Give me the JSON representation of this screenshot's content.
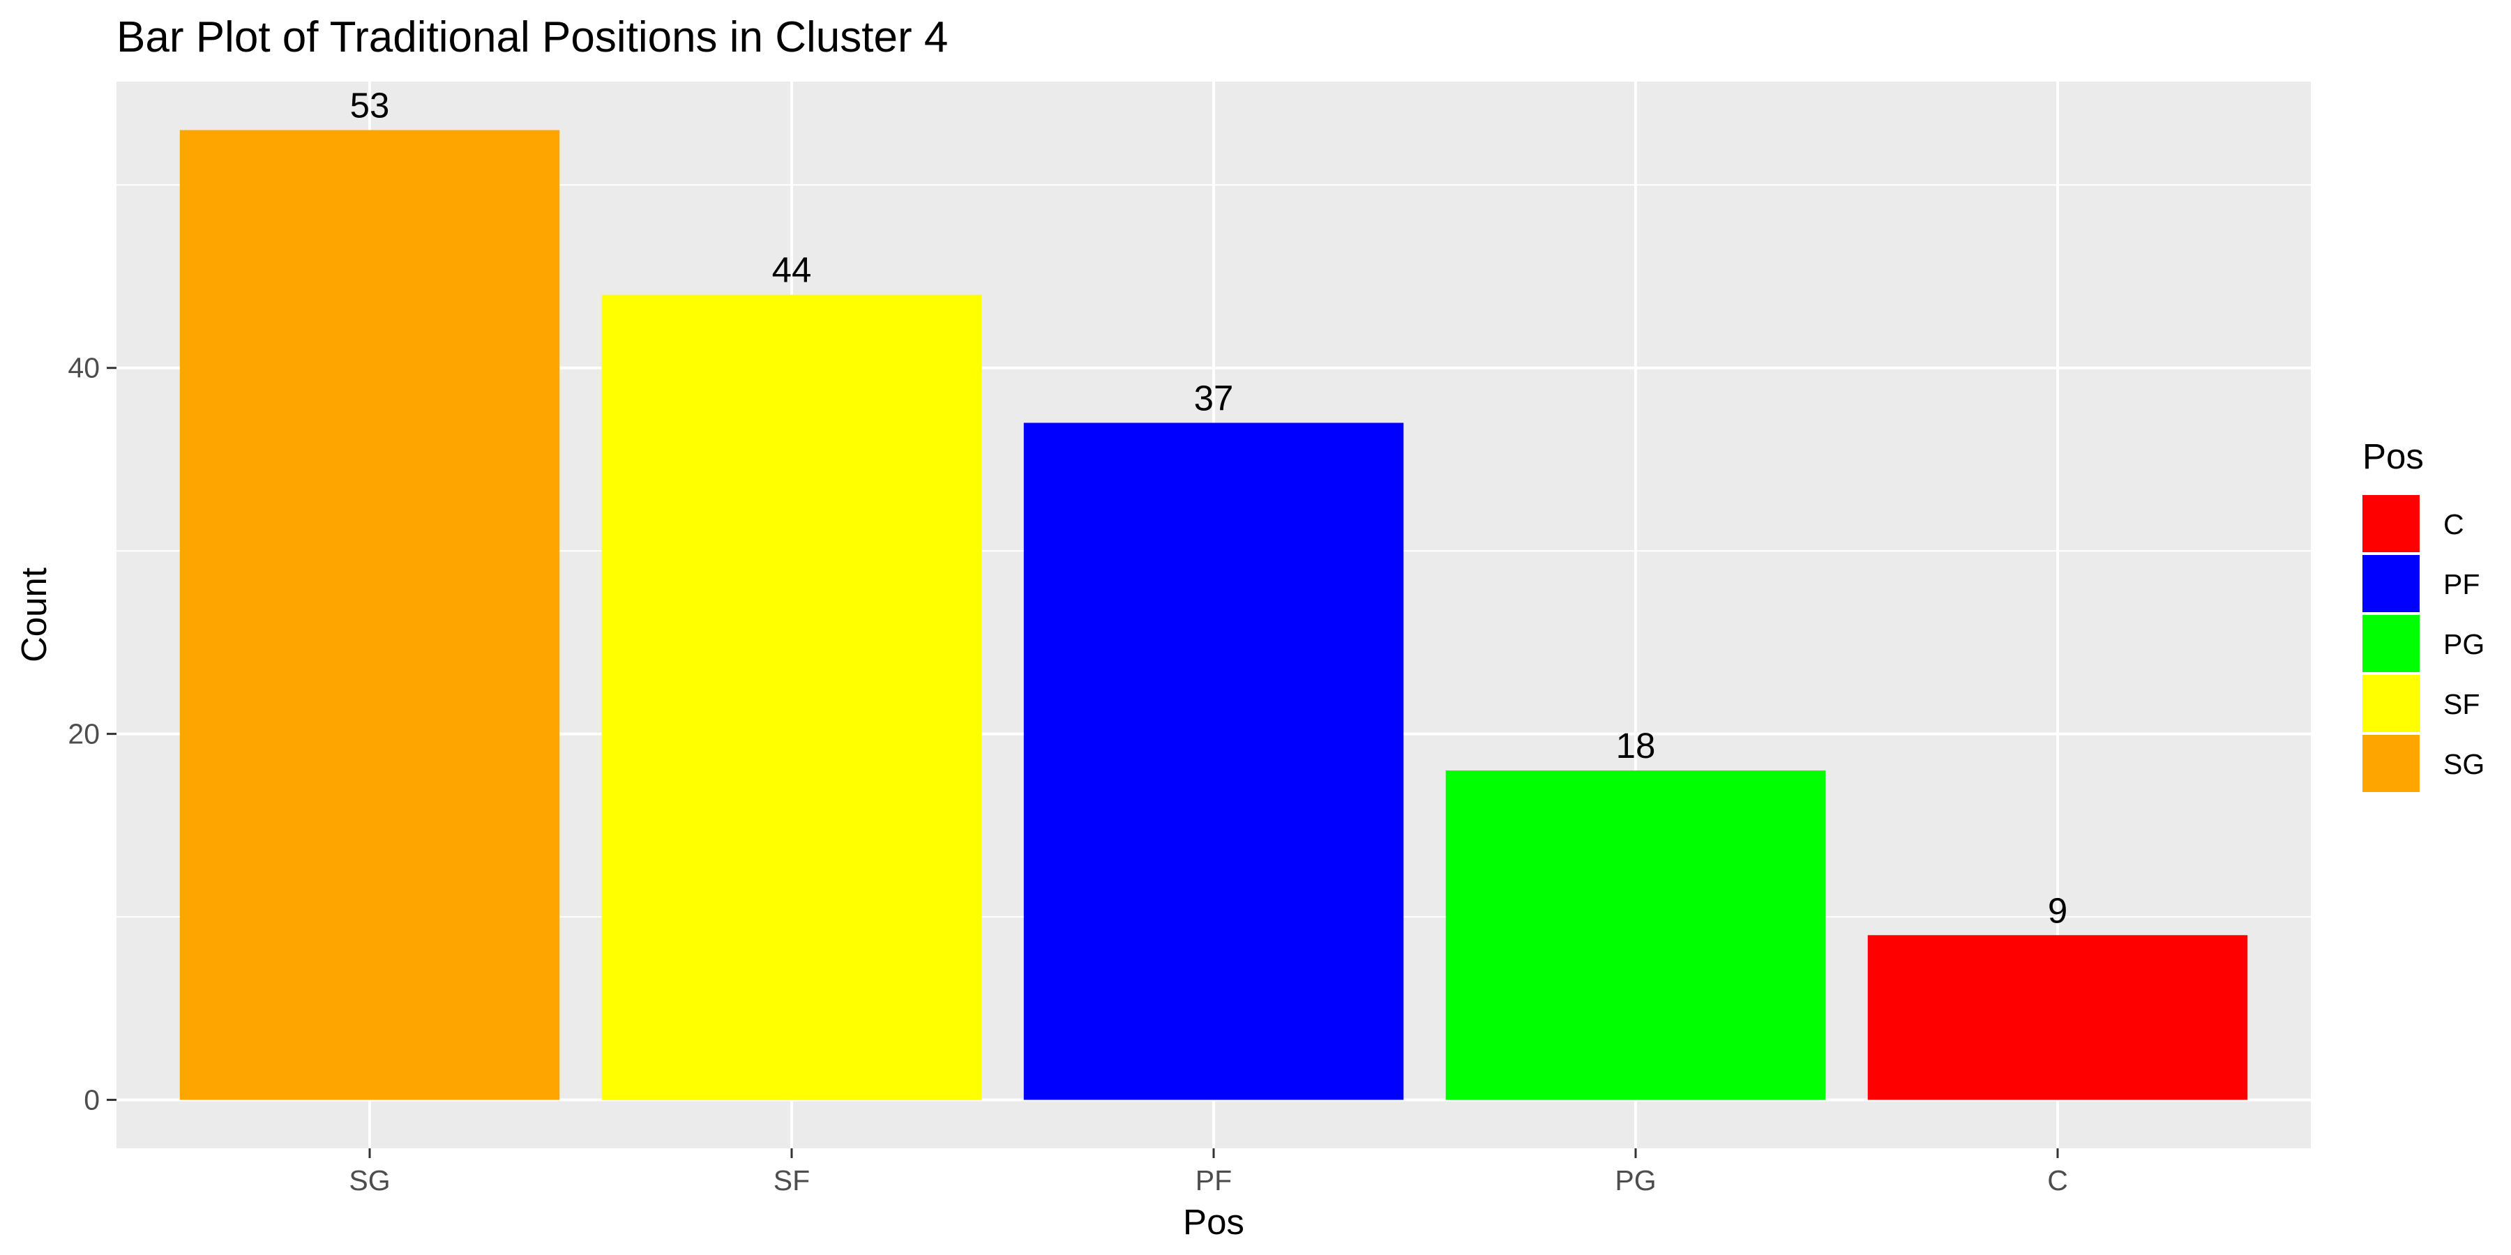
{
  "chart_data": {
    "type": "bar",
    "title": "Bar Plot of Traditional Positions in Cluster 4",
    "xlabel": "Pos",
    "ylabel": "Count",
    "categories": [
      "SG",
      "SF",
      "PF",
      "PG",
      "C"
    ],
    "values": [
      53,
      44,
      37,
      18,
      9
    ],
    "data_labels": [
      "53",
      "44",
      "37",
      "18",
      "9"
    ],
    "bar_colors": [
      "#FFA500",
      "#FFFF00",
      "#0000FF",
      "#00FF00",
      "#FF0000"
    ],
    "ylim": [
      -2.65,
      55.65
    ],
    "yticks": [
      0,
      20,
      40
    ],
    "ytick_labels": [
      "0",
      "20",
      "40"
    ],
    "grid": true,
    "panel_background": "#EBEBEB",
    "grid_color": "#FFFFFF",
    "legend": {
      "title": "Pos",
      "placement": "right",
      "items": [
        {
          "label": "C",
          "color": "#FF0000"
        },
        {
          "label": "PF",
          "color": "#0000FF"
        },
        {
          "label": "PG",
          "color": "#00FF00"
        },
        {
          "label": "SF",
          "color": "#FFFF00"
        },
        {
          "label": "SG",
          "color": "#FFA500"
        }
      ]
    }
  }
}
